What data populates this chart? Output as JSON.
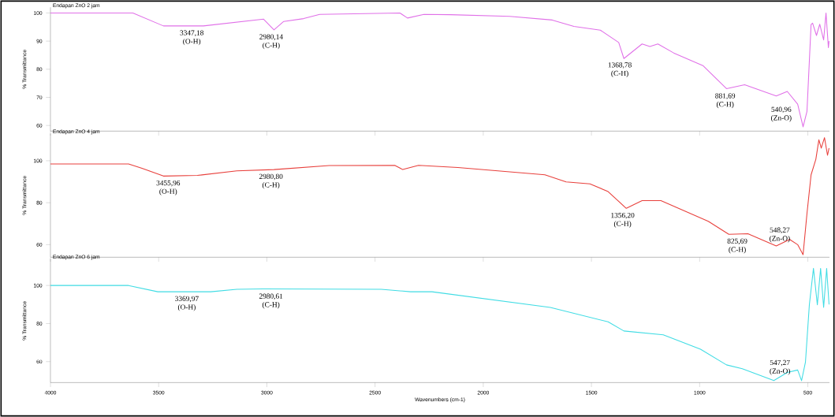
{
  "chart_data": [
    {
      "type": "line",
      "title": "Endapan ZnO 2 jam",
      "ylabel": "% Transmittance",
      "tick_labels": "y",
      "xlim": [
        4000,
        400
      ],
      "ylim": [
        58,
        102
      ],
      "xticks": [
        4000,
        3500,
        3000,
        2500,
        2000,
        1500,
        1000,
        500
      ],
      "yticks": [
        60,
        70,
        80,
        90,
        100
      ],
      "x": [
        4000,
        3619,
        3478,
        3293,
        3015,
        2967,
        2922,
        2830,
        2756,
        2385,
        2350,
        2274,
        2152,
        1878,
        1681,
        1581,
        1459,
        1374,
        1350,
        1266,
        1230,
        1193,
        1120,
        985,
        876,
        792,
        646,
        595,
        547,
        522,
        504,
        485,
        478,
        460,
        445,
        427,
        416,
        405,
        402
      ],
      "series": [
        {
          "color": "#e070e8",
          "values": [
            100,
            100,
            95.4,
            95.4,
            97.8,
            94,
            97,
            98,
            99.5,
            100,
            98.2,
            99.5,
            99.4,
            98.8,
            97.5,
            95.2,
            93.9,
            89.5,
            83.8,
            89,
            88.1,
            89,
            85.8,
            81.3,
            73.1,
            74.5,
            70.5,
            72.1,
            67.6,
            59.5,
            65,
            95.9,
            96.4,
            92,
            96,
            90.4,
            100,
            87.7,
            90
          ]
        }
      ],
      "annotations": [
        {
          "text": "3347,18 (O-H)",
          "x": 3347,
          "y": 95.4
        },
        {
          "text": "2980,14 (C-H)",
          "x": 2980,
          "y": 94
        },
        {
          "text": "1368,78 (C-H)",
          "x": 1369,
          "y": 84
        },
        {
          "text": "881,69 (C-H)",
          "x": 882,
          "y": 73
        },
        {
          "text": "540,96 (Zn-O)",
          "x": 541,
          "y": 62
        }
      ]
    },
    {
      "type": "line",
      "title": "Endapan ZnO 4 jam",
      "ylabel": "% Transmittance",
      "tick_labels": "y",
      "xlim": [
        4000,
        400
      ],
      "ylim": [
        54,
        113
      ],
      "xticks": [
        4000,
        3500,
        3000,
        2500,
        2000,
        1500,
        1000,
        500
      ],
      "yticks": [
        60,
        80,
        100
      ],
      "x": [
        4000,
        3639,
        3577,
        3478,
        3321,
        3139,
        2967,
        2712,
        2409,
        2372,
        2299,
        2117,
        1715,
        1617,
        1507,
        1423,
        1339,
        1266,
        1179,
        960,
        865,
        777,
        646,
        584,
        547,
        522,
        504,
        485,
        463,
        449,
        438,
        423,
        409,
        402
      ],
      "series": [
        {
          "color": "#e8403c",
          "values": [
            98.5,
            98.5,
            96.4,
            92.7,
            93,
            95.2,
            95.8,
            97.7,
            97.8,
            95.8,
            97.8,
            96.8,
            93.3,
            89.9,
            89,
            85.3,
            77.3,
            81,
            81,
            71.1,
            64.9,
            65.2,
            59.4,
            62.5,
            60,
            55.2,
            74.8,
            93.3,
            100.7,
            110,
            106,
            111,
            102.6,
            106
          ]
        }
      ],
      "annotations": [
        {
          "text": "3455,96 (O-H)",
          "x": 3456,
          "y": 92.7
        },
        {
          "text": "2980,80 (C-H)",
          "x": 2981,
          "y": 95.8
        },
        {
          "text": "1356,20 (C-H)",
          "x": 1356,
          "y": 77.3
        },
        {
          "text": "825,69 (C-H)",
          "x": 826,
          "y": 65
        },
        {
          "text": "548,27 (Zn-O)",
          "x": 548,
          "y": 62
        }
      ]
    },
    {
      "type": "line",
      "title": "Endapan ZnO 6 jam",
      "ylabel": "% Transmittance",
      "xlabel": "Wavenumbers (cm-1)",
      "xlim": [
        4000,
        400
      ],
      "ylim": [
        49,
        114
      ],
      "xticks": [
        4000,
        3500,
        3000,
        2500,
        2000,
        1500,
        1000,
        500
      ],
      "yticks": [
        60,
        80,
        100
      ],
      "x": [
        4000,
        3639,
        3504,
        3259,
        3139,
        3018,
        2471,
        2336,
        2237,
        1690,
        1423,
        1350,
        1168,
        996,
        876,
        803,
        657,
        595,
        547,
        529,
        511,
        493,
        474,
        456,
        441,
        427,
        413,
        402
      ],
      "series": [
        {
          "color": "#40dce4",
          "values": [
            100,
            100,
            96.7,
            96.7,
            98,
            98.2,
            98,
            96.7,
            96.7,
            88.5,
            80.9,
            76.1,
            74.1,
            66.5,
            58.3,
            56.3,
            50.1,
            54.3,
            55.6,
            50,
            59.7,
            89.8,
            109,
            89.8,
            109,
            88.5,
            109,
            90
          ]
        }
      ],
      "annotations": [
        {
          "text": "3369,97 (O-H)",
          "x": 3370,
          "y": 96.7
        },
        {
          "text": "2980,61 (C-H)",
          "x": 2981,
          "y": 98
        },
        {
          "text": "547,27 (Zn-O)",
          "x": 547,
          "y": 54
        }
      ]
    }
  ]
}
